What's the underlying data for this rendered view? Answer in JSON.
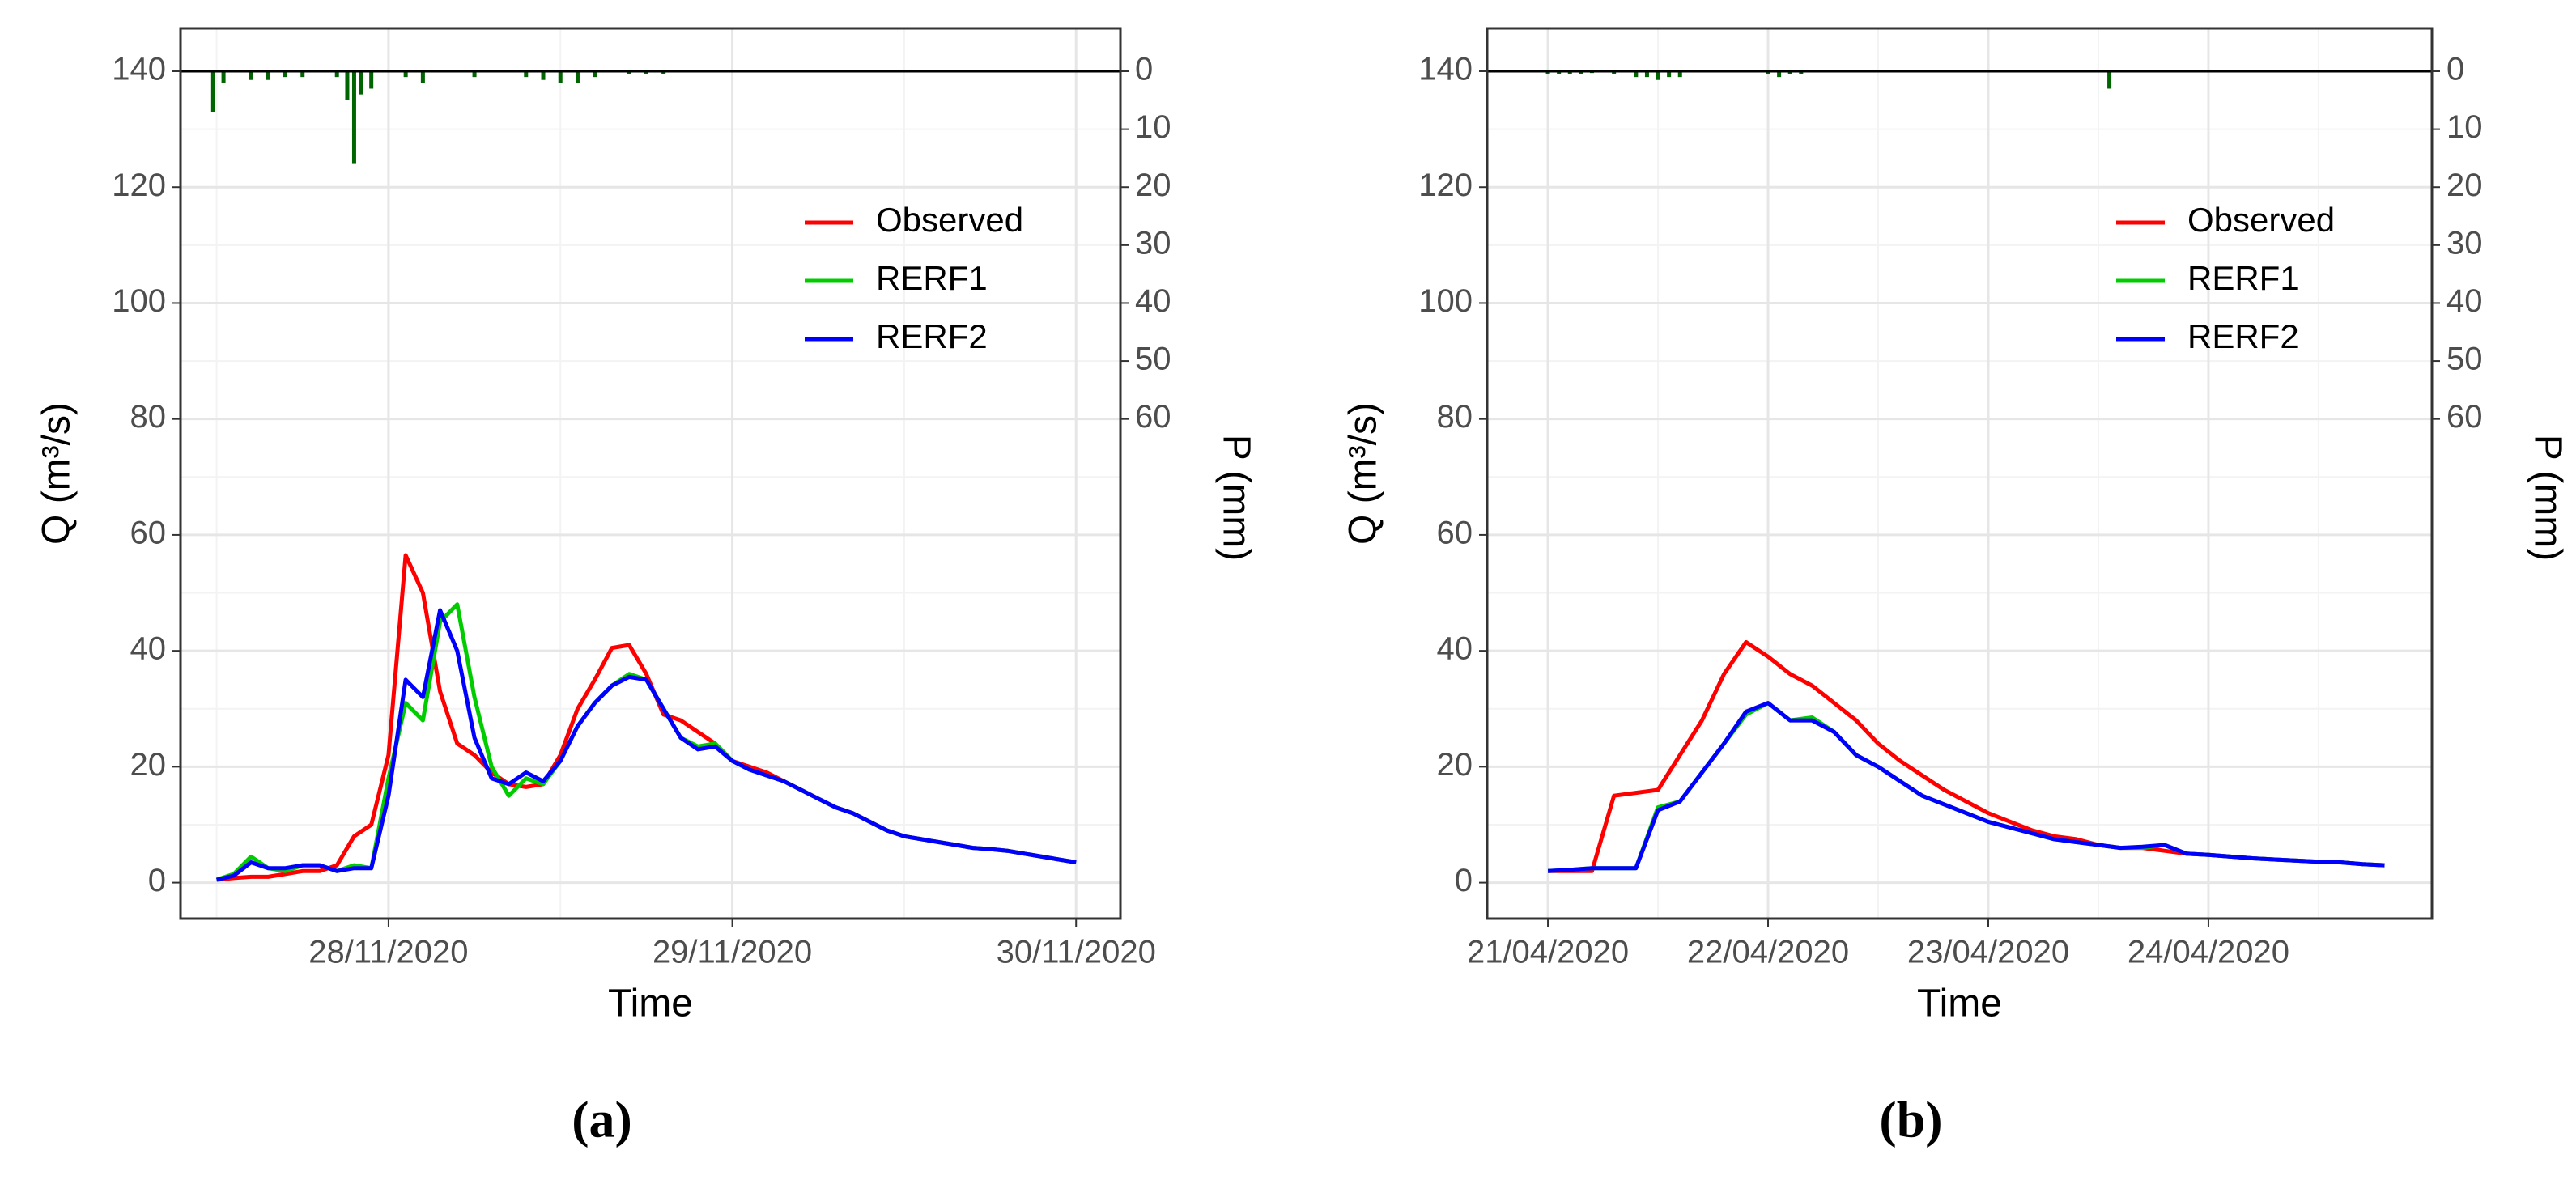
{
  "chart_data": [
    {
      "type": "line",
      "caption": "(a)",
      "xlabel": "Time",
      "ylabel": "Q (m³/s)",
      "y2label": "P (mm)",
      "xlim": [
        27.395,
        30.129
      ],
      "xticks": [
        {
          "value": 28,
          "label": "28/11/2020"
        },
        {
          "value": 29,
          "label": "29/11/2020"
        },
        {
          "value": 30,
          "label": "30/11/2020"
        }
      ],
      "ylim": [
        -6.2,
        147.4
      ],
      "yticks": [
        0,
        20,
        40,
        60,
        80,
        100,
        120,
        140
      ],
      "y2lim": [
        146.2,
        -7.4
      ],
      "y2ticks": [
        0,
        10,
        20,
        30,
        40,
        50,
        60
      ],
      "grid": true,
      "legend": "upper right",
      "x": [
        27.5,
        27.55,
        27.6,
        27.65,
        27.7,
        27.75,
        27.8,
        27.85,
        27.9,
        27.95,
        28.0,
        28.05,
        28.1,
        28.15,
        28.2,
        28.25,
        28.3,
        28.35,
        28.4,
        28.45,
        28.5,
        28.55,
        28.6,
        28.65,
        28.7,
        28.75,
        28.8,
        28.85,
        28.9,
        28.95,
        29.0,
        29.05,
        29.1,
        29.15,
        29.2,
        29.25,
        29.3,
        29.35,
        29.4,
        29.45,
        29.5,
        29.55,
        29.6,
        29.65,
        29.7,
        29.75,
        29.8,
        29.85,
        29.9,
        29.95,
        30.0
      ],
      "series": [
        {
          "name": "Observed",
          "color": "#ff0000",
          "values": [
            0.5,
            0.8,
            1,
            1,
            1.5,
            2,
            2,
            3,
            8,
            10,
            22,
            56.5,
            50,
            33,
            24,
            22,
            19,
            17,
            16.5,
            17,
            22,
            30,
            35,
            40.5,
            41,
            36,
            29,
            28,
            26,
            24,
            21,
            20,
            19,
            17.5,
            16,
            14.5,
            13,
            12,
            10.5,
            9,
            8,
            7.5,
            7,
            6.5,
            6,
            5.8,
            5.5,
            5,
            4.5,
            4,
            3.5
          ]
        },
        {
          "name": "RERF1",
          "color": "#00cc00",
          "values": [
            0.5,
            1.5,
            4.5,
            2.5,
            2,
            3,
            3,
            2,
            3,
            2.5,
            18,
            31,
            28,
            45,
            48,
            32,
            20,
            15,
            18,
            17,
            21,
            27,
            31,
            34,
            36,
            35,
            30,
            25,
            23.5,
            24,
            21,
            19.5,
            18.5,
            17.5,
            16,
            14.5,
            13,
            12,
            10.5,
            9,
            8,
            7.5,
            7,
            6.5,
            6,
            5.8,
            5.5,
            5,
            4.5,
            4,
            3.5
          ]
        },
        {
          "name": "RERF2",
          "color": "#0000ff",
          "values": [
            0.5,
            1.2,
            3.5,
            2.5,
            2.5,
            3,
            3,
            2,
            2.5,
            2.5,
            15,
            35,
            32,
            47,
            40,
            25,
            18,
            17,
            19,
            17.5,
            21,
            27,
            31,
            34,
            35.5,
            35,
            30,
            25,
            23,
            23.5,
            21,
            19.5,
            18.5,
            17.5,
            16,
            14.5,
            13,
            12,
            10.5,
            9,
            8,
            7.5,
            7,
            6.5,
            6,
            5.8,
            5.5,
            5,
            4.5,
            4,
            3.5
          ]
        }
      ],
      "bars": {
        "axis": "y2",
        "color": "#006400",
        "x": [
          27.49,
          27.52,
          27.6,
          27.65,
          27.7,
          27.75,
          27.85,
          27.88,
          27.9,
          27.92,
          27.95,
          28.05,
          28.1,
          28.25,
          28.4,
          28.45,
          28.5,
          28.55,
          28.6,
          28.7,
          28.75,
          28.8
        ],
        "values": [
          7,
          2,
          1.5,
          1.5,
          1,
          1,
          1,
          5,
          16,
          4,
          3,
          1,
          2,
          1,
          1,
          1.5,
          2,
          2,
          1,
          0.5,
          0.5,
          0.5
        ]
      }
    },
    {
      "type": "line",
      "caption": "(b)",
      "xlabel": "Time",
      "ylabel": "Q (m³/s)",
      "y2label": "P (mm)",
      "xlim": [
        20.724,
        25.015
      ],
      "xticks": [
        {
          "value": 21,
          "label": "21/04/2020"
        },
        {
          "value": 22,
          "label": "22/04/2020"
        },
        {
          "value": 23,
          "label": "23/04/2020"
        },
        {
          "value": 24,
          "label": "24/04/2020"
        }
      ],
      "ylim": [
        -6.2,
        147.4
      ],
      "yticks": [
        0,
        20,
        40,
        60,
        80,
        100,
        120,
        140
      ],
      "y2lim": [
        146.2,
        -7.4
      ],
      "y2ticks": [
        0,
        10,
        20,
        30,
        40,
        50,
        60
      ],
      "grid": true,
      "legend": "upper right",
      "x": [
        21.0,
        21.1,
        21.2,
        21.3,
        21.4,
        21.5,
        21.6,
        21.7,
        21.8,
        21.9,
        22.0,
        22.1,
        22.2,
        22.3,
        22.4,
        22.5,
        22.6,
        22.7,
        22.8,
        22.9,
        23.0,
        23.1,
        23.2,
        23.3,
        23.4,
        23.5,
        23.6,
        23.7,
        23.8,
        23.9,
        24.0,
        24.1,
        24.2,
        24.3,
        24.4,
        24.5,
        24.6,
        24.7,
        24.8
      ],
      "series": [
        {
          "name": "Observed",
          "color": "#ff0000",
          "values": [
            2,
            2,
            2,
            15,
            15.5,
            16,
            22,
            28,
            36,
            41.5,
            39,
            36,
            34,
            31,
            28,
            24,
            21,
            18.5,
            16,
            14,
            12,
            10.5,
            9,
            8,
            7.5,
            6.5,
            6,
            6,
            5.5,
            5,
            4.8,
            4.5,
            4.2,
            4,
            3.8,
            3.6,
            3.5,
            3.2,
            3
          ]
        },
        {
          "name": "RERF1",
          "color": "#00cc00",
          "values": [
            2,
            2.2,
            2.5,
            2.5,
            2.5,
            13,
            14,
            19,
            24,
            29,
            31,
            28,
            28.5,
            26,
            22,
            20,
            17.5,
            15,
            13.5,
            12,
            10.5,
            9.5,
            8.5,
            7.5,
            7,
            6.5,
            6,
            6,
            6.5,
            5,
            4.8,
            4.5,
            4.2,
            4,
            3.8,
            3.6,
            3.5,
            3.2,
            3
          ]
        },
        {
          "name": "RERF2",
          "color": "#0000ff",
          "values": [
            2,
            2.2,
            2.5,
            2.5,
            2.5,
            12.5,
            14,
            19,
            24,
            29.5,
            31,
            28,
            28,
            26,
            22,
            20,
            17.5,
            15,
            13.5,
            12,
            10.5,
            9.5,
            8.5,
            7.5,
            7,
            6.5,
            6,
            6.2,
            6.5,
            5,
            4.8,
            4.5,
            4.2,
            4,
            3.8,
            3.6,
            3.5,
            3.2,
            3
          ]
        }
      ],
      "bars": {
        "axis": "y2",
        "color": "#006400",
        "x": [
          21.0,
          21.05,
          21.1,
          21.15,
          21.2,
          21.3,
          21.4,
          21.45,
          21.5,
          21.55,
          21.6,
          22.0,
          22.05,
          22.1,
          22.15,
          23.55
        ],
        "values": [
          0.5,
          0.5,
          0.5,
          0.5,
          0.3,
          0.5,
          1,
          1,
          1.5,
          1,
          1,
          0.5,
          1,
          0.5,
          0.5,
          3
        ]
      }
    }
  ]
}
